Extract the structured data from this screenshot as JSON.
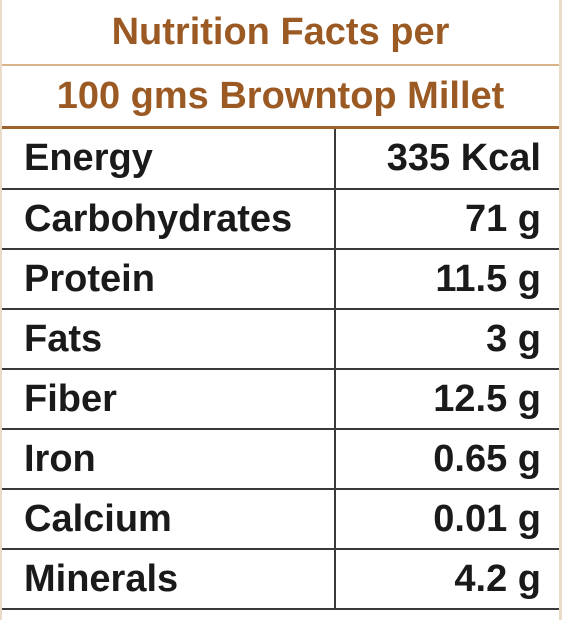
{
  "header": {
    "line1": "Nutrition Facts per",
    "line2": "100 gms Browntop Millet"
  },
  "rows": [
    {
      "name": "Energy",
      "value": "335 Kcal"
    },
    {
      "name": "Carbohydrates",
      "value": "71 g"
    },
    {
      "name": "Protein",
      "value": "11.5 g"
    },
    {
      "name": "Fats",
      "value": "3 g"
    },
    {
      "name": "Fiber",
      "value": "12.5 g"
    },
    {
      "name": "Iron",
      "value": "0.65 g"
    },
    {
      "name": "Calcium",
      "value": "0.01 g"
    },
    {
      "name": "Minerals",
      "value": "4.2 g"
    }
  ],
  "colors": {
    "header_text": "#9b5a23",
    "header_rule": "#a0622d",
    "body_text": "#1a1a1a"
  }
}
